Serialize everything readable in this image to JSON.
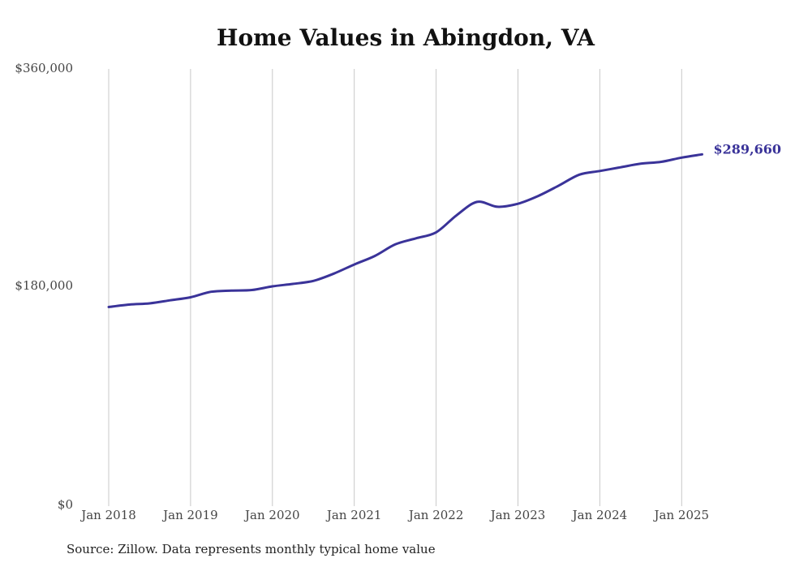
{
  "chart_data": {
    "type": "line",
    "title": "Home Values in Abingdon, VA",
    "source": "Source: Zillow. Data represents monthly typical home value",
    "y_tick_labels": [
      "$360,000",
      "$180,000",
      "$0"
    ],
    "y_ticks": [
      360000,
      180000,
      0
    ],
    "ylim": [
      0,
      360000
    ],
    "x_tick_labels": [
      "Jan 2018",
      "Jan 2019",
      "Jan 2020",
      "Jan 2021",
      "Jan 2022",
      "Jan 2023",
      "Jan 2024",
      "Jan 2025"
    ],
    "x_ticks": [
      "2018-01",
      "2019-01",
      "2020-01",
      "2021-01",
      "2022-01",
      "2023-01",
      "2024-01",
      "2025-01"
    ],
    "end_label": "$289,660",
    "grid": "vertical",
    "line_color": "#3a3399",
    "series": [
      {
        "values": [
          {
            "x": "2018-01",
            "y": 164000
          },
          {
            "x": "2018-04",
            "y": 166000
          },
          {
            "x": "2018-07",
            "y": 167000
          },
          {
            "x": "2018-10",
            "y": 169500
          },
          {
            "x": "2019-01",
            "y": 172000
          },
          {
            "x": "2019-04",
            "y": 176500
          },
          {
            "x": "2019-07",
            "y": 177500
          },
          {
            "x": "2019-10",
            "y": 178000
          },
          {
            "x": "2020-01",
            "y": 181000
          },
          {
            "x": "2020-04",
            "y": 183000
          },
          {
            "x": "2020-07",
            "y": 185500
          },
          {
            "x": "2020-10",
            "y": 191500
          },
          {
            "x": "2021-01",
            "y": 199000
          },
          {
            "x": "2021-04",
            "y": 206000
          },
          {
            "x": "2021-07",
            "y": 215500
          },
          {
            "x": "2021-10",
            "y": 220500
          },
          {
            "x": "2022-01",
            "y": 225500
          },
          {
            "x": "2022-04",
            "y": 239500
          },
          {
            "x": "2022-07",
            "y": 250500
          },
          {
            "x": "2022-10",
            "y": 246500
          },
          {
            "x": "2023-01",
            "y": 249000
          },
          {
            "x": "2023-04",
            "y": 255500
          },
          {
            "x": "2023-07",
            "y": 264000
          },
          {
            "x": "2023-10",
            "y": 273000
          },
          {
            "x": "2024-01",
            "y": 276000
          },
          {
            "x": "2024-04",
            "y": 279000
          },
          {
            "x": "2024-07",
            "y": 282000
          },
          {
            "x": "2024-10",
            "y": 283500
          },
          {
            "x": "2025-01",
            "y": 287000
          },
          {
            "x": "2025-04",
            "y": 289660
          }
        ]
      }
    ]
  }
}
